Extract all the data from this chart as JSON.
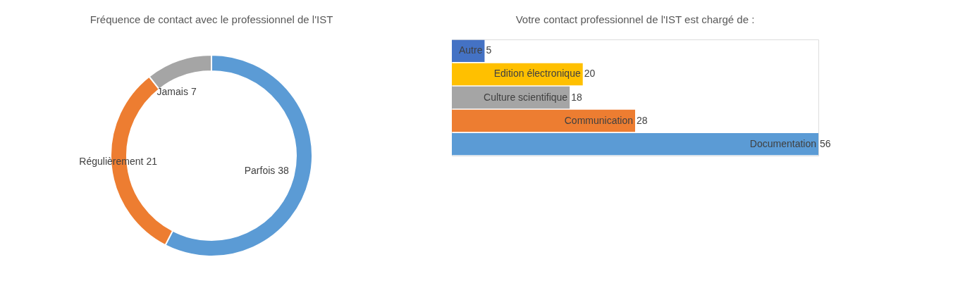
{
  "chart_data": [
    {
      "type": "donut",
      "title": "Fréquence de contact avec le professionnel  de l'IST",
      "categories": [
        "Parfois",
        "Régulièrement",
        "Jamais"
      ],
      "values": [
        38,
        21,
        7
      ],
      "colors": [
        "#5b9bd5",
        "#ed7d31",
        "#a5a5a5"
      ],
      "data_labels": true
    },
    {
      "type": "bar",
      "orientation": "horizontal",
      "title": "Votre contact professionnel  de l'IST est chargé de :",
      "categories": [
        "Autre",
        "Edition électronique",
        "Culture scientifique",
        "Communication",
        "Documentation"
      ],
      "values": [
        5,
        20,
        18,
        28,
        56
      ],
      "colors": [
        "#4472c4",
        "#ffc000",
        "#a5a5a5",
        "#ed7d31",
        "#5b9bd5"
      ],
      "data_labels": true,
      "tick_labels": false
    }
  ]
}
